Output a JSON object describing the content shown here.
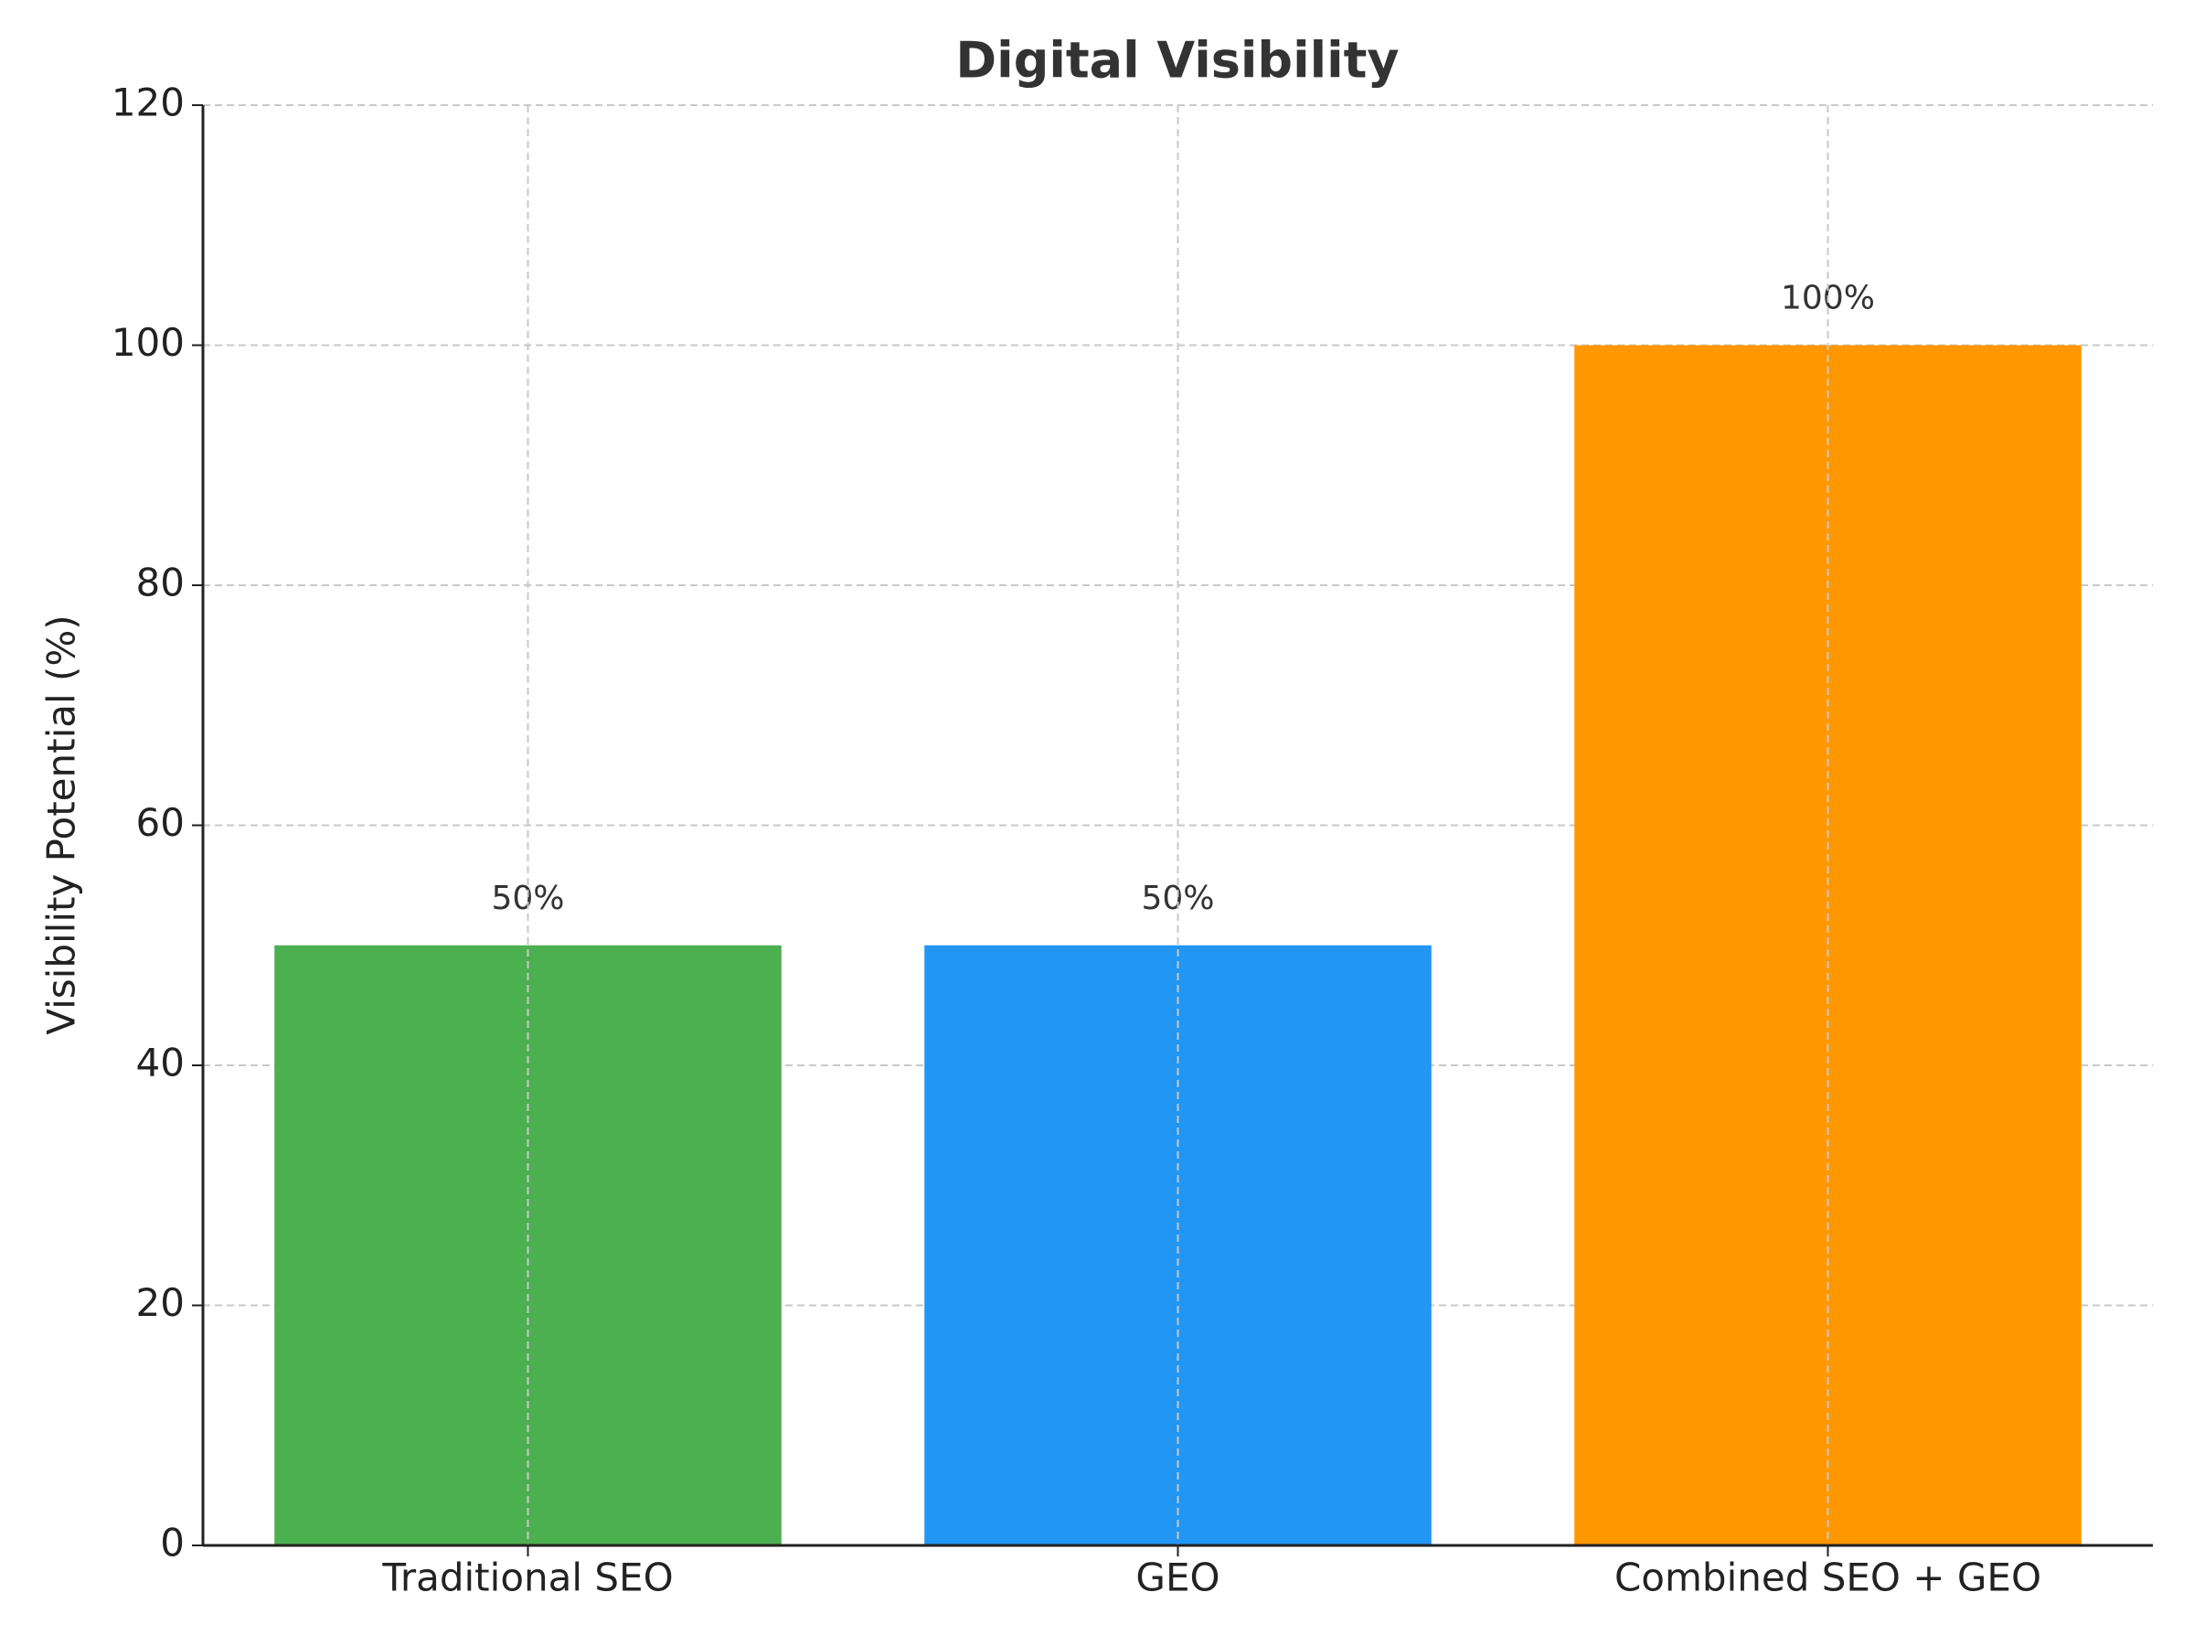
{
  "chart_data": {
    "type": "bar",
    "title": "Digital Visibility",
    "y_label": "Visibility Potential (%)",
    "categories": [
      "Traditional SEO",
      "GEO",
      "Combined SEO + GEO"
    ],
    "values": [
      50,
      50,
      100
    ],
    "value_labels": [
      "50%",
      "50%",
      "100%"
    ],
    "colors": [
      "#4caf50",
      "#2196f3",
      "#ff9800"
    ],
    "ylim": [
      0,
      120
    ],
    "yticks": [
      0,
      20,
      40,
      60,
      80,
      100,
      120
    ],
    "grid": true
  }
}
